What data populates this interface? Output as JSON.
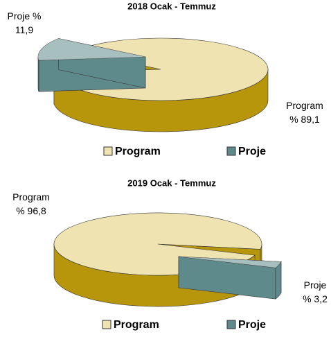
{
  "chart_data": [
    {
      "type": "pie",
      "title": "2018 Ocak - Temmuz",
      "categories": [
        "Program",
        "Proje"
      ],
      "values": [
        89.1,
        11.9
      ],
      "value_labels": [
        "Program\n% 89,1",
        "Proje %\n11,9"
      ],
      "colors": [
        "#efe3b1",
        "#5f8a8b"
      ],
      "legend": "bottom"
    },
    {
      "type": "pie",
      "title": "2019 Ocak - Temmuz",
      "categories": [
        "Program",
        "Proje"
      ],
      "values": [
        96.8,
        3.2
      ],
      "value_labels": [
        "Program\n% 96,8",
        "Proje\n% 3,2"
      ],
      "colors": [
        "#efe3b1",
        "#5f8a8b"
      ],
      "legend": "bottom"
    }
  ]
}
